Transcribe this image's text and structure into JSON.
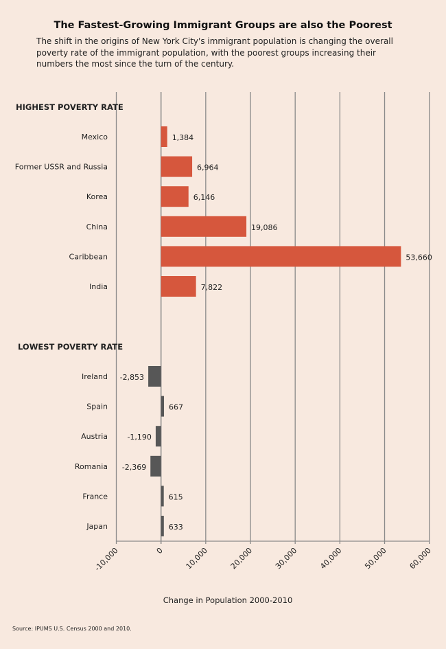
{
  "title": "The Fastest-Growing Immigrant Groups are also the Poorest",
  "subtitle": "The shift in the origins of New York City's immigrant population is changing the overall poverty rate of the immigrant population, with the poorest groups increasing their numbers the most since the turn of the century.",
  "source": "Source:  IPUMS U.S. Census 2000 and 2010.",
  "chart_data": {
    "type": "bar",
    "orientation": "horizontal",
    "xlabel": "Change in Population 2000-2010",
    "xlim": [
      -10000,
      60000
    ],
    "xticks": [
      -10000,
      0,
      10000,
      20000,
      30000,
      40000,
      50000,
      60000
    ],
    "xtick_labels": [
      "-10,000",
      "0",
      "10,000",
      "20,000",
      "30,000",
      "40,000",
      "50,000",
      "60,000"
    ],
    "grid": true,
    "groups": [
      {
        "name": "HIGHEST POVERTY RATE",
        "color": "#d6573d",
        "categories": [
          "Mexico",
          "Former USSR and Russia",
          "Korea",
          "China",
          "Caribbean",
          "India"
        ],
        "values": [
          1384,
          6964,
          6146,
          19086,
          53660,
          7822
        ],
        "labels": [
          "1,384",
          "6,964",
          "6,146",
          "19,086",
          "53,660",
          "7,822"
        ]
      },
      {
        "name": "LOWEST POVERTY RATE",
        "color": "#575757",
        "categories": [
          "Ireland",
          "Spain",
          "Austria",
          "Romania",
          "France",
          "Japan"
        ],
        "values": [
          -2853,
          667,
          -1190,
          -2369,
          615,
          633
        ],
        "labels": [
          "-2,853",
          "667",
          "-1,190",
          "-2,369",
          "615",
          "633"
        ]
      }
    ]
  }
}
